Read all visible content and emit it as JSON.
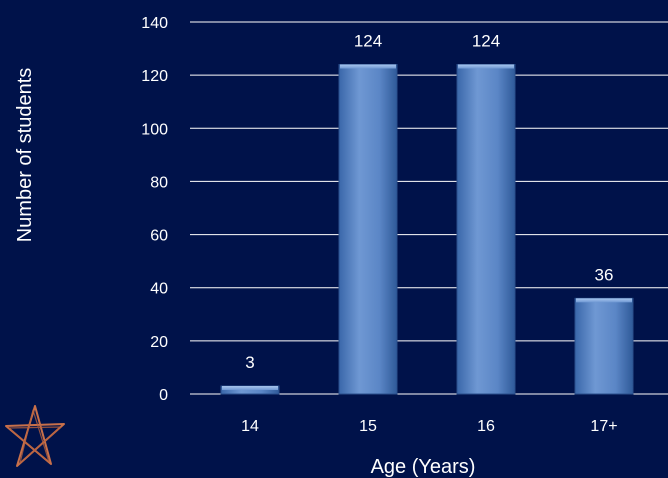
{
  "chart_data": {
    "type": "bar",
    "categories": [
      "14",
      "15",
      "16",
      "17+"
    ],
    "values": [
      3,
      124,
      124,
      36
    ],
    "data_labels": [
      "3",
      "124",
      "124",
      "36"
    ],
    "xlabel": "Age (Years)",
    "ylabel": "Number of students",
    "ylim": [
      0,
      140
    ],
    "yticks": [
      0,
      20,
      40,
      60,
      80,
      100,
      120,
      140
    ],
    "grid": true,
    "legend": "none"
  },
  "colors": {
    "background": "#00124a",
    "bar_top": "#7fa6dc",
    "bar_bottom": "#3f6fb5",
    "text": "#ffffff",
    "grid": "#ffffff"
  },
  "decoration": {
    "icon": "star-doodle-icon"
  }
}
